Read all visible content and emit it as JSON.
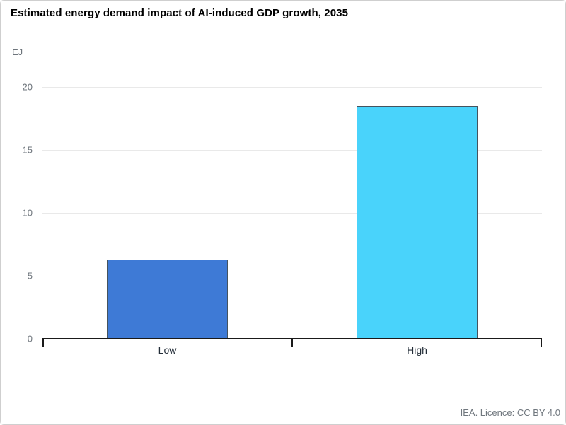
{
  "page": {
    "footer_link": "IEA. Licence: CC BY 4.0"
  },
  "chart_data": {
    "type": "bar",
    "title": "Estimated energy demand impact of AI-induced GDP growth, 2035",
    "unit_label": "EJ",
    "categories": [
      "Low",
      "High"
    ],
    "values": [
      6.3,
      18.5
    ],
    "bar_colors": [
      "#3e7ad6",
      "#49d3fb"
    ],
    "ylim": [
      0,
      20
    ],
    "yticks": [
      0,
      5,
      10,
      15,
      20
    ],
    "grid": "horizontal",
    "legend": "none",
    "colors": {
      "bar_border": "#45535e",
      "gridline": "#e9e9e9",
      "axis": "#1a1a1a",
      "tick_label": "#6e757c",
      "category_label": "#232d38",
      "footer_text": "#70777e"
    }
  }
}
